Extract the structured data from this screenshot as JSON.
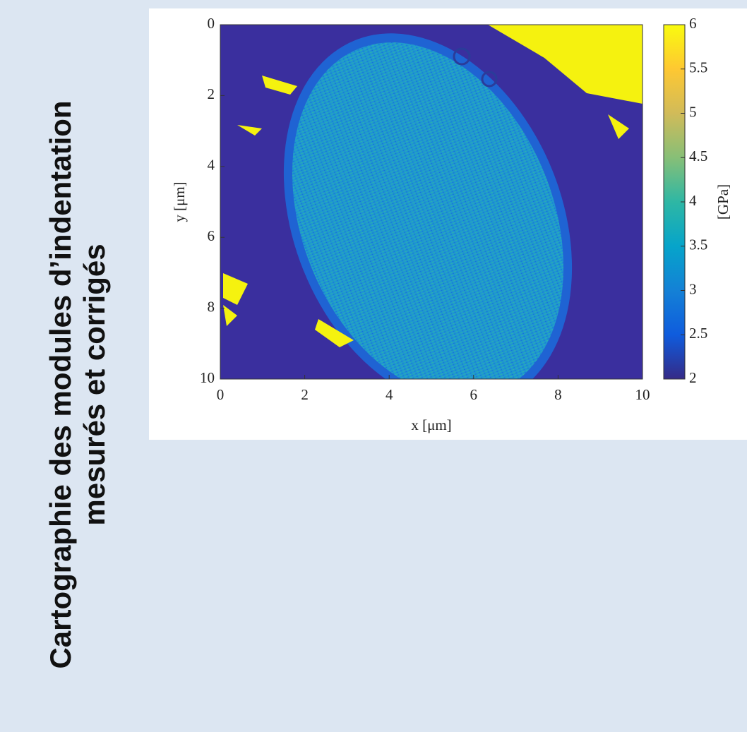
{
  "title_lines": [
    "Cartographie des modules d’indentation",
    "mesurés et corrigés"
  ],
  "chart_data": {
    "type": "heatmap",
    "xlabel": "x [μm]",
    "ylabel": "y [μm]",
    "xlim": [
      0,
      10
    ],
    "xticks": [
      0,
      2,
      4,
      6,
      8,
      10
    ],
    "ylim": [
      10,
      0
    ],
    "yticks": [
      0,
      2,
      4,
      6,
      8,
      10
    ],
    "colorbar": {
      "label": "[GPa]",
      "lim": [
        2,
        6
      ],
      "ticks": [
        2,
        2.5,
        3,
        3.5,
        4,
        4.5,
        5,
        5.5,
        6
      ],
      "colors": [
        "#352a87",
        "#0f5cdd",
        "#1481d6",
        "#06a4ca",
        "#2eb7a4",
        "#87bf77",
        "#d1bb59",
        "#fec832",
        "#f9fb0e"
      ]
    }
  }
}
